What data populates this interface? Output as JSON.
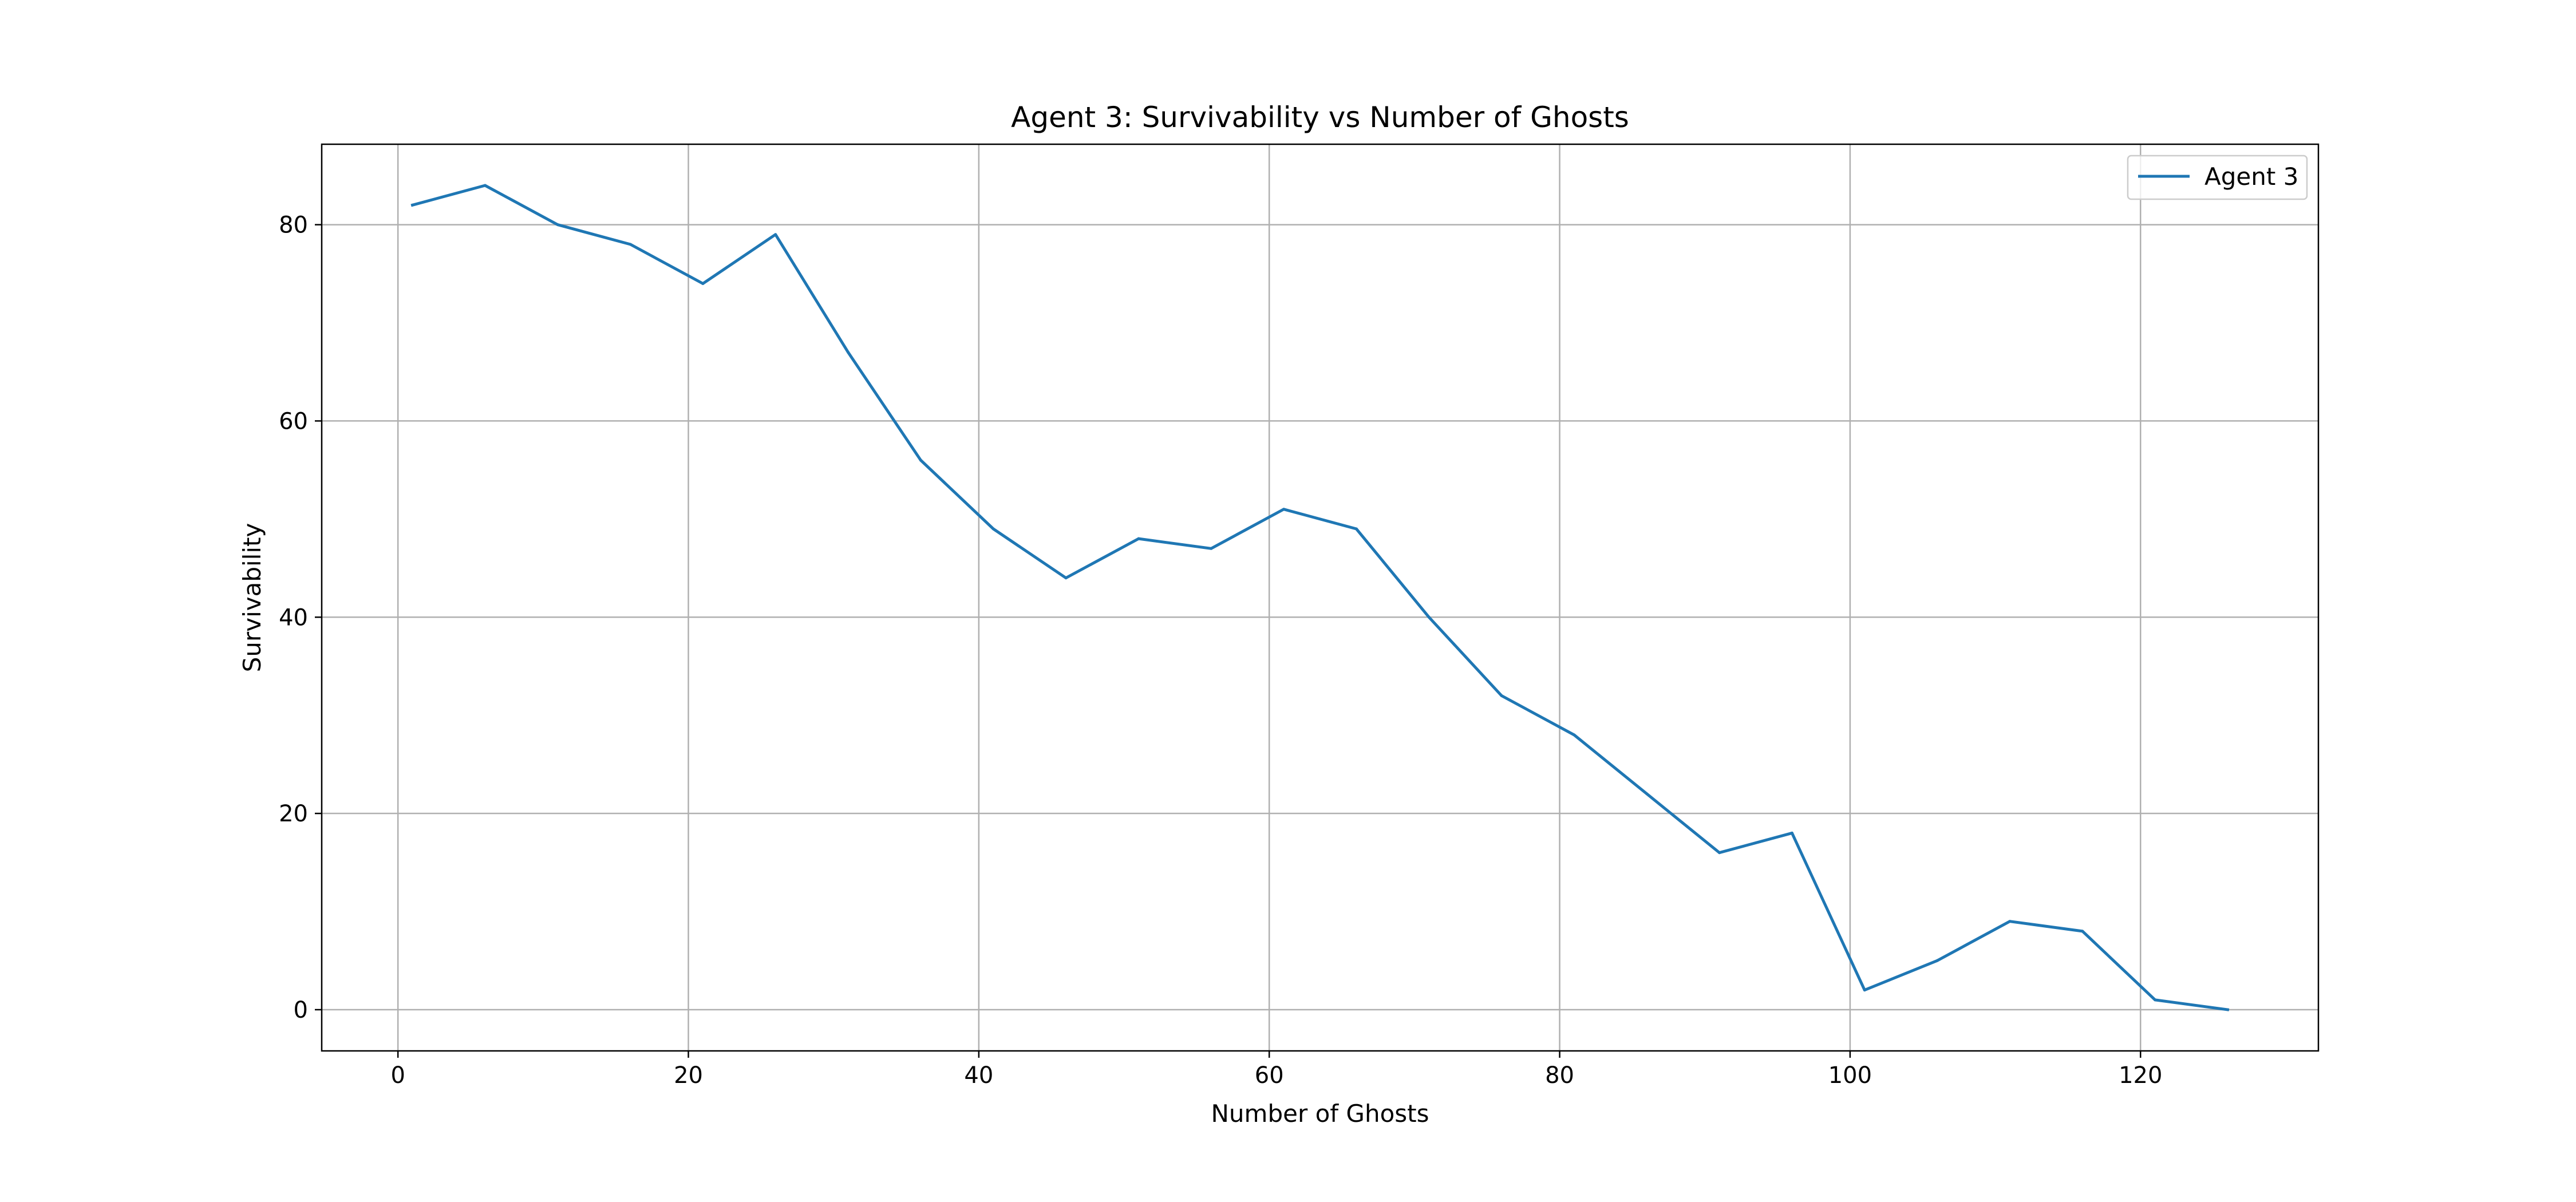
{
  "chart_data": {
    "type": "line",
    "title": "Agent 3: Survivability vs Number of Ghosts",
    "xlabel": "Number of Ghosts",
    "ylabel": "Survivability",
    "xlim": [
      -5.25,
      132.25
    ],
    "ylim": [
      -4.2,
      88.2
    ],
    "xticks": [
      0,
      20,
      40,
      60,
      80,
      100,
      120
    ],
    "yticks": [
      0,
      20,
      40,
      60,
      80
    ],
    "xtick_labels": [
      "0",
      "20",
      "40",
      "60",
      "80",
      "100",
      "120"
    ],
    "ytick_labels": [
      "0",
      "20",
      "40",
      "60",
      "80"
    ],
    "grid": true,
    "legend_position": "upper right",
    "x": [
      1,
      6,
      11,
      16,
      21,
      26,
      31,
      36,
      41,
      46,
      51,
      56,
      61,
      66,
      71,
      76,
      81,
      86,
      91,
      96,
      101,
      106,
      111,
      116,
      121,
      126
    ],
    "series": [
      {
        "name": "Agent 3",
        "color": "#1f77b4",
        "values": [
          82,
          84,
          80,
          78,
          74,
          79,
          67,
          56,
          49,
          44,
          48,
          47,
          51,
          49,
          40,
          32,
          28,
          22,
          16,
          18,
          2,
          5,
          9,
          8,
          1,
          0
        ]
      }
    ]
  }
}
